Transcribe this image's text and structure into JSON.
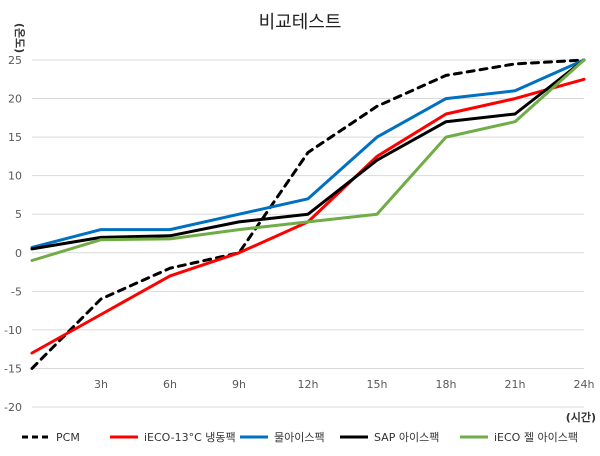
{
  "chart_data": {
    "type": "line",
    "title": "비교테스트",
    "ylabel": "(온도)",
    "xlabel": "(시간)",
    "ylim": [
      -20,
      25
    ],
    "yticks": [
      25,
      20,
      15,
      10,
      5,
      0,
      -5,
      -10,
      -15,
      -20
    ],
    "x": [
      0,
      3,
      6,
      9,
      12,
      15,
      18,
      21,
      24
    ],
    "categories": [
      "",
      "3h",
      "6h",
      "9h",
      "12h",
      "15h",
      "18h",
      "21h",
      "24h"
    ],
    "grid": true,
    "legend_position": "bottom",
    "series": [
      {
        "name": "PCM",
        "color": "#000000",
        "dashed": true,
        "values": [
          -15,
          -6,
          -2,
          0,
          13,
          19,
          23,
          24.5,
          25
        ]
      },
      {
        "name": "iECO-13°C 냉동팩",
        "color": "#ff0000",
        "dashed": false,
        "values": [
          -13,
          -8,
          -3,
          0,
          4,
          12.5,
          18,
          20,
          22.5
        ]
      },
      {
        "name": "물아이스팩",
        "color": "#0070c0",
        "dashed": false,
        "values": [
          0.7,
          3,
          3,
          5,
          7,
          15,
          20,
          21,
          25
        ]
      },
      {
        "name": "SAP 아이스팩",
        "color": "#000000",
        "dashed": false,
        "values": [
          0.5,
          2,
          2.2,
          4,
          5,
          12,
          17,
          18,
          25
        ]
      },
      {
        "name": "iECO 젤 아이스팩",
        "color": "#70ad47",
        "dashed": false,
        "values": [
          -1,
          1.7,
          1.8,
          3,
          4,
          5,
          15,
          17,
          25
        ]
      }
    ]
  }
}
